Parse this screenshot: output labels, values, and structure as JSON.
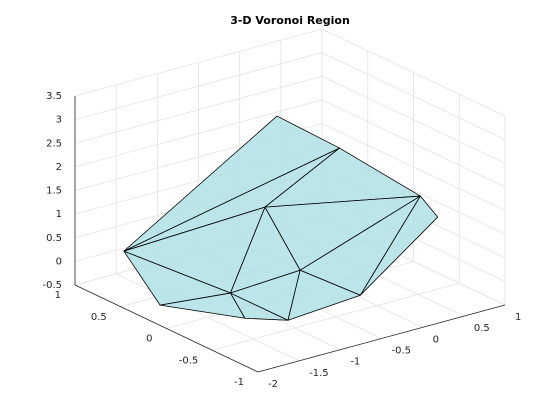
{
  "chart_data": {
    "type": "patch3d",
    "title": "3-D Voronoi Region",
    "vertices": {
      "x": [
        -0.38,
        -0.11,
        0.35,
        0.45,
        -1.84,
        -1.9,
        -1.39,
        -1.38,
        -1.08,
        -0.19,
        -0.57,
        -0.71
      ],
      "y": [
        0.25,
        -0.19,
        -0.66,
        -0.76,
        0.61,
        0.16,
        -0.15,
        -0.3,
        -0.5,
        -0.49,
        0.21,
        -0.3
      ],
      "z": [
        3,
        2.6,
        1.8,
        1.4,
        0.5,
        -0.2,
        0.1,
        -0.3,
        -0.3,
        -0.2,
        1.2,
        0.4
      ]
    },
    "faces": [
      [
        4,
        0,
        1
      ],
      [
        4,
        1,
        10
      ],
      [
        10,
        1,
        2
      ],
      [
        4,
        10,
        6
      ],
      [
        4,
        6,
        5
      ],
      [
        5,
        6,
        7
      ],
      [
        6,
        7,
        8
      ],
      [
        6,
        10,
        11
      ],
      [
        6,
        11,
        8
      ],
      [
        11,
        10,
        2
      ],
      [
        11,
        2,
        9
      ],
      [
        11,
        9,
        8
      ],
      [
        2,
        3,
        9
      ]
    ],
    "color": "#b0e0e6",
    "edge_color": "#000000",
    "xlim": [
      -2,
      1
    ],
    "xticks": [
      -2,
      -1.5,
      -1,
      -0.5,
      0,
      0.5,
      1
    ],
    "ylim": [
      -1,
      1
    ],
    "yticks": [
      -1,
      -0.5,
      0,
      0.5,
      1
    ],
    "zlim": [
      -0.5,
      3.5
    ],
    "zticks": [
      -0.5,
      0,
      0.5,
      1,
      1.5,
      2,
      2.5,
      3,
      3.5
    ],
    "grid": true
  }
}
